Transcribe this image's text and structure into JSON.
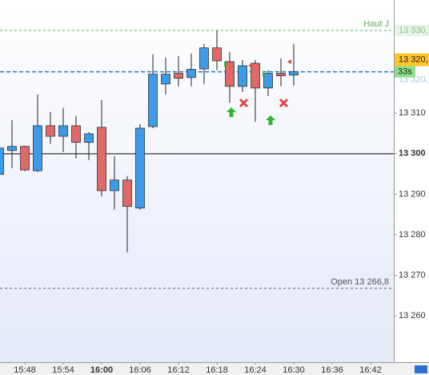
{
  "chart_data": {
    "type": "candlestick",
    "categories": [
      null,
      null,
      "15:48",
      null,
      null,
      "15:54",
      null,
      null,
      "16:00",
      null,
      null,
      "16:06",
      null,
      null,
      "16:12",
      null,
      null,
      "16:18",
      null,
      null,
      "16:24",
      null,
      null,
      "16:30",
      null,
      null,
      "16:36",
      null,
      null,
      "16:42",
      null
    ],
    "x_bold_index": 8,
    "open": [
      13294.9,
      13300.8,
      13301.8,
      13295.8,
      13306.9,
      13304.3,
      13306.9,
      13302.8,
      13306.5,
      13290.9,
      13293.5,
      13286.6,
      13306.7,
      13317.2,
      13319.8,
      13318.8,
      13320.9,
      13326.1,
      13322.7,
      13316.6,
      13322.3,
      13316.2,
      13319.8,
      13319.4,
      null,
      null,
      null,
      null,
      null,
      null,
      null
    ],
    "high": [
      13301.4,
      13308.3,
      13302.0,
      13314.6,
      13310.3,
      13311.3,
      13309.3,
      13305.3,
      13313.2,
      13299.4,
      13294.5,
      13307.3,
      13324.5,
      13323.7,
      13324.1,
      13324.7,
      13327.1,
      13330.4,
      13325.1,
      13323.1,
      13323.1,
      13320.6,
      13323.5,
      13327.1,
      null,
      null,
      null,
      null,
      null,
      null,
      null
    ],
    "low": [
      13294.9,
      13296.4,
      13295.7,
      13295.5,
      13302.4,
      13300.4,
      13298.8,
      13298.4,
      13289.5,
      13286.2,
      13275.7,
      13286.2,
      13306.3,
      13314.6,
      13316.6,
      13316.6,
      13317.2,
      13320.6,
      13312.6,
      13315.2,
      13307.9,
      13314.2,
      13316.6,
      13316.8,
      null,
      null,
      null,
      null,
      null,
      null,
      null
    ],
    "close": [
      13301.4,
      13301.8,
      13296.0,
      13306.9,
      13304.3,
      13306.9,
      13302.8,
      13304.9,
      13290.9,
      13293.5,
      13287.0,
      13306.3,
      13319.6,
      13319.6,
      13318.6,
      13320.8,
      13326.1,
      13322.9,
      13316.6,
      13321.7,
      13316.2,
      13319.8,
      13319.2,
      13320.2,
      null,
      null,
      null,
      null,
      null,
      null,
      null
    ],
    "up_color": "#3d9be9",
    "down_color": "#e06868",
    "ylim": [
      13248.6,
      13337.9
    ],
    "yticks": [
      {
        "value": 13260,
        "label": "13 260"
      },
      {
        "value": 13270,
        "label": "13 270"
      },
      {
        "value": 13280,
        "label": "13 280"
      },
      {
        "value": 13290,
        "label": "13 290"
      },
      {
        "value": 13300,
        "label": "13 300"
      },
      {
        "value": 13310,
        "label": "13 310"
      }
    ],
    "y_bold_index": 4,
    "levels": [
      {
        "name": "Haut J",
        "value": 13330.4,
        "label": "13 330,",
        "color": "#5cb85c",
        "style": "dashed"
      },
      {
        "value": 13320.2,
        "label": "13 320,",
        "timer": "33s",
        "color": "#1a7bd0",
        "style": "dashed"
      },
      {
        "value": 13300,
        "color": "#555555",
        "style": "solid"
      },
      {
        "name": "Open 13 266,8",
        "value": 13266.8,
        "color": "#666666",
        "style": "dashed"
      }
    ]
  }
}
